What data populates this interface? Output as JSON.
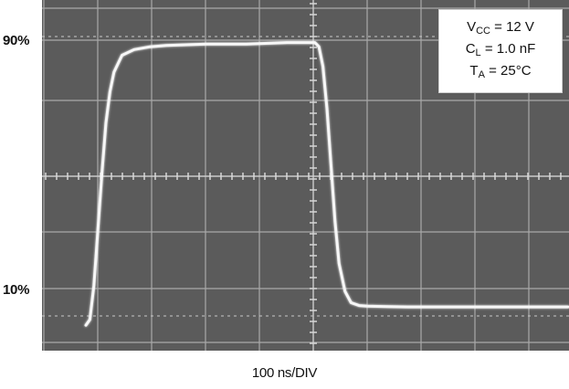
{
  "chart_data": {
    "type": "line",
    "title": "",
    "xlabel": "100 ns/DIV",
    "ylabel": "",
    "grid": true,
    "y_reference_labels": [
      {
        "label": "90%",
        "level": 0.9
      },
      {
        "label": "10%",
        "level": 0.1
      }
    ],
    "conditions": [
      {
        "symbol": "V",
        "subscript": "CC",
        "value": " = 12 V"
      },
      {
        "symbol": "C",
        "subscript": "L",
        "value": " = 1.0 nF"
      },
      {
        "symbol": "T",
        "subscript": "A",
        "value": " = 25°C"
      }
    ],
    "series": [
      {
        "x_divisions": [
          0.0,
          0.1,
          0.2,
          0.3,
          0.4,
          0.5,
          0.6,
          0.7,
          0.9,
          1.2,
          1.6,
          2.0,
          3.0,
          4.0,
          5.0,
          5.5,
          5.7,
          5.8,
          5.9,
          6.0,
          6.1,
          6.2,
          6.3,
          6.45,
          6.6,
          6.8,
          7.0,
          7.5,
          8.0,
          9.0,
          10.0,
          11.0,
          12.0
        ],
        "levels": [
          -0.02,
          0.0,
          0.12,
          0.32,
          0.52,
          0.7,
          0.81,
          0.88,
          0.94,
          0.96,
          0.97,
          0.975,
          0.98,
          0.98,
          0.985,
          0.985,
          0.985,
          0.97,
          0.9,
          0.75,
          0.55,
          0.35,
          0.2,
          0.1,
          0.06,
          0.05,
          0.048,
          0.046,
          0.045,
          0.045,
          0.045,
          0.045,
          0.045
        ]
      }
    ]
  }
}
